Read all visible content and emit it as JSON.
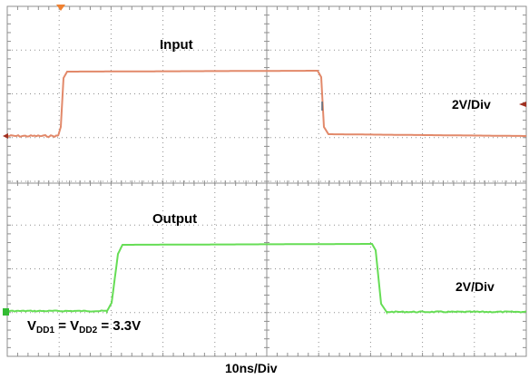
{
  "channels": {
    "input": {
      "name": "Input",
      "scale": "2V/Div",
      "color": "#e2896a"
    },
    "output": {
      "name": "Output",
      "scale": "2V/Div",
      "color": "#66dd55"
    }
  },
  "timebase": "10ns/Div",
  "supply": {
    "v1": "V",
    "sub1": "DD1",
    "eq1": " = V",
    "sub2": "DD2",
    "eq2": " = 3.3V"
  },
  "colors": {
    "grid": "#8f8f8f",
    "background": "#ffffff",
    "trigger_marker": "#f08030",
    "ground_marker_input": "#a03020",
    "ground_marker_output": "#33bb33"
  }
}
